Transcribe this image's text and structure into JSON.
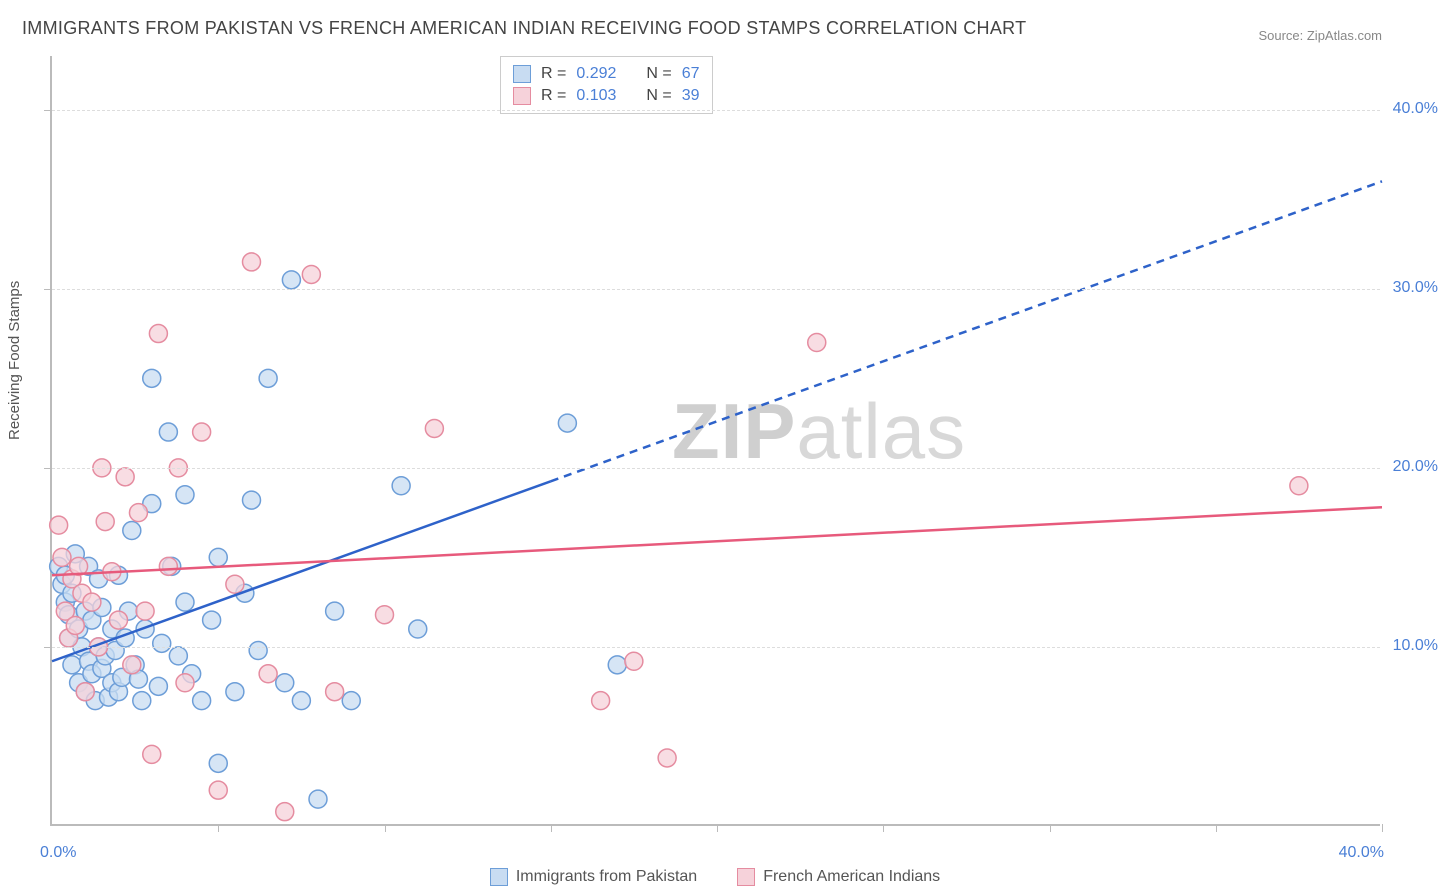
{
  "title": "IMMIGRANTS FROM PAKISTAN VS FRENCH AMERICAN INDIAN RECEIVING FOOD STAMPS CORRELATION CHART",
  "source": "Source: ZipAtlas.com",
  "yaxis_label": "Receiving Food Stamps",
  "watermark": {
    "part1": "ZIP",
    "part2": "atlas"
  },
  "xlim": [
    0,
    40
  ],
  "ylim": [
    0,
    43
  ],
  "y_ticks": [
    10,
    20,
    30,
    40
  ],
  "y_tick_labels": [
    "10.0%",
    "20.0%",
    "30.0%",
    "40.0%"
  ],
  "x_axis_left_label": "0.0%",
  "x_axis_right_label": "40.0%",
  "x_minor_ticks": [
    5,
    10,
    15,
    20,
    25,
    30,
    35,
    40
  ],
  "grid_color": "#dddddd",
  "axis_color": "#bbbbbb",
  "axis_value_color": "#4a7fd6",
  "background_color": "#ffffff",
  "series": [
    {
      "key": "pakistan",
      "label": "Immigrants from Pakistan",
      "R_label": "R =",
      "R_value": "0.292",
      "N_label": "N =",
      "N_value": "67",
      "fill": "#c8dcf2",
      "stroke": "#6d9ed8",
      "line_color": "#2e62c9",
      "line_width": 2.5,
      "marker_radius": 9,
      "marker_stroke_width": 1.5,
      "fill_opacity": 0.75,
      "trend": {
        "x1": 0,
        "y1": 9.2,
        "x2": 40,
        "y2": 36.0,
        "solid_until_x": 15
      },
      "points": [
        [
          0.2,
          14.5
        ],
        [
          0.3,
          13.5
        ],
        [
          0.4,
          12.5
        ],
        [
          0.4,
          14.0
        ],
        [
          0.5,
          10.5
        ],
        [
          0.5,
          11.8
        ],
        [
          0.6,
          9.0
        ],
        [
          0.6,
          13.0
        ],
        [
          0.7,
          15.2
        ],
        [
          0.8,
          8.0
        ],
        [
          0.8,
          11.0
        ],
        [
          0.9,
          10.0
        ],
        [
          1.0,
          7.5
        ],
        [
          1.0,
          12.0
        ],
        [
          1.1,
          9.2
        ],
        [
          1.1,
          14.5
        ],
        [
          1.2,
          8.5
        ],
        [
          1.2,
          11.5
        ],
        [
          1.3,
          7.0
        ],
        [
          1.4,
          10.0
        ],
        [
          1.4,
          13.8
        ],
        [
          1.5,
          8.8
        ],
        [
          1.5,
          12.2
        ],
        [
          1.6,
          9.5
        ],
        [
          1.7,
          7.2
        ],
        [
          1.8,
          8.0
        ],
        [
          1.8,
          11.0
        ],
        [
          1.9,
          9.8
        ],
        [
          2.0,
          7.5
        ],
        [
          2.0,
          14.0
        ],
        [
          2.1,
          8.3
        ],
        [
          2.2,
          10.5
        ],
        [
          2.3,
          12.0
        ],
        [
          2.4,
          16.5
        ],
        [
          2.5,
          9.0
        ],
        [
          2.6,
          8.2
        ],
        [
          2.7,
          7.0
        ],
        [
          2.8,
          11.0
        ],
        [
          3.0,
          18.0
        ],
        [
          3.0,
          25.0
        ],
        [
          3.2,
          7.8
        ],
        [
          3.3,
          10.2
        ],
        [
          3.5,
          22.0
        ],
        [
          3.6,
          14.5
        ],
        [
          3.8,
          9.5
        ],
        [
          4.0,
          12.5
        ],
        [
          4.0,
          18.5
        ],
        [
          4.2,
          8.5
        ],
        [
          4.5,
          7.0
        ],
        [
          4.8,
          11.5
        ],
        [
          5.0,
          3.5
        ],
        [
          5.0,
          15.0
        ],
        [
          5.5,
          7.5
        ],
        [
          5.8,
          13.0
        ],
        [
          6.0,
          18.2
        ],
        [
          6.2,
          9.8
        ],
        [
          6.5,
          25.0
        ],
        [
          7.0,
          8.0
        ],
        [
          7.2,
          30.5
        ],
        [
          7.5,
          7.0
        ],
        [
          8.0,
          1.5
        ],
        [
          8.5,
          12.0
        ],
        [
          9.0,
          7.0
        ],
        [
          10.5,
          19.0
        ],
        [
          11.0,
          11.0
        ],
        [
          15.5,
          22.5
        ],
        [
          17.0,
          9.0
        ]
      ]
    },
    {
      "key": "french_ai",
      "label": "French American Indians",
      "R_label": "R =",
      "R_value": "0.103",
      "N_label": "N =",
      "N_value": "39",
      "fill": "#f6d2da",
      "stroke": "#e58ca0",
      "line_color": "#e75a7c",
      "line_width": 2.5,
      "marker_radius": 9,
      "marker_stroke_width": 1.5,
      "fill_opacity": 0.75,
      "trend": {
        "x1": 0,
        "y1": 14.0,
        "x2": 40,
        "y2": 17.8,
        "solid_until_x": 40
      },
      "points": [
        [
          0.2,
          16.8
        ],
        [
          0.3,
          15.0
        ],
        [
          0.4,
          12.0
        ],
        [
          0.5,
          10.5
        ],
        [
          0.6,
          13.8
        ],
        [
          0.7,
          11.2
        ],
        [
          0.8,
          14.5
        ],
        [
          0.9,
          13.0
        ],
        [
          1.0,
          7.5
        ],
        [
          1.2,
          12.5
        ],
        [
          1.4,
          10.0
        ],
        [
          1.5,
          20.0
        ],
        [
          1.6,
          17.0
        ],
        [
          1.8,
          14.2
        ],
        [
          2.0,
          11.5
        ],
        [
          2.2,
          19.5
        ],
        [
          2.4,
          9.0
        ],
        [
          2.6,
          17.5
        ],
        [
          2.8,
          12.0
        ],
        [
          3.0,
          4.0
        ],
        [
          3.2,
          27.5
        ],
        [
          3.5,
          14.5
        ],
        [
          3.8,
          20.0
        ],
        [
          4.0,
          8.0
        ],
        [
          4.5,
          22.0
        ],
        [
          5.0,
          2.0
        ],
        [
          5.5,
          13.5
        ],
        [
          6.0,
          31.5
        ],
        [
          6.5,
          8.5
        ],
        [
          7.0,
          0.8
        ],
        [
          7.8,
          30.8
        ],
        [
          8.5,
          7.5
        ],
        [
          10.0,
          11.8
        ],
        [
          11.5,
          22.2
        ],
        [
          16.5,
          7.0
        ],
        [
          17.5,
          9.2
        ],
        [
          18.5,
          3.8
        ],
        [
          23.0,
          27.0
        ],
        [
          37.5,
          19.0
        ]
      ]
    }
  ],
  "legend_bottom": [
    {
      "label": "Immigrants from Pakistan",
      "fill": "#c8dcf2",
      "stroke": "#6d9ed8"
    },
    {
      "label": "French American Indians",
      "fill": "#f6d2da",
      "stroke": "#e58ca0"
    }
  ]
}
